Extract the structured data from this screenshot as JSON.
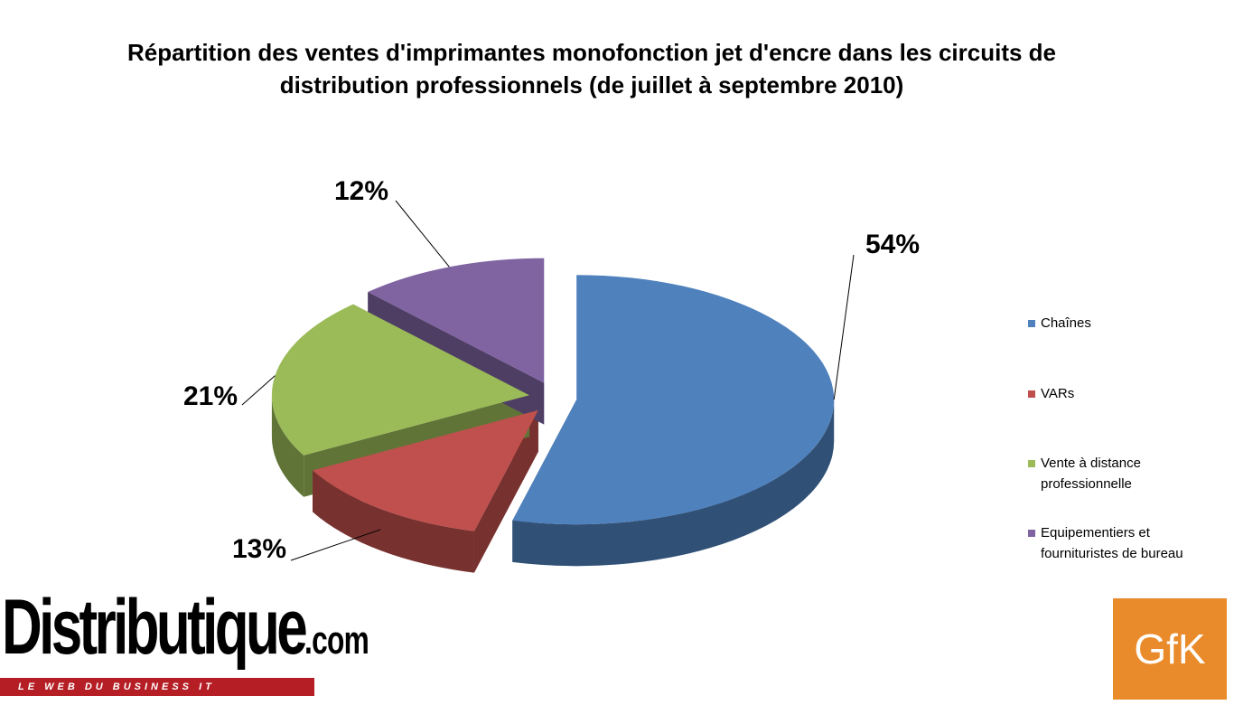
{
  "chart_data": {
    "type": "pie",
    "title": "Répartition des ventes d'imprimantes monofonction jet d'encre dans les circuits de distribution professionnels (de juillet à septembre 2010)",
    "categories": [
      "Chaînes",
      "VARs",
      "Vente à distance professionnelle",
      "Equipementiers et fournituristes de bureau"
    ],
    "values": [
      54,
      13,
      21,
      12
    ],
    "value_labels": [
      "54%",
      "13%",
      "21%",
      "12%"
    ],
    "colors": [
      "#4f81bd",
      "#c0504d",
      "#9bbb59",
      "#8064a2"
    ],
    "legend": "right"
  },
  "branding": {
    "left": "Distributique",
    "left_suffix": ".com",
    "tagline": "LE WEB DU BUSINESS IT",
    "right": "GfK"
  }
}
